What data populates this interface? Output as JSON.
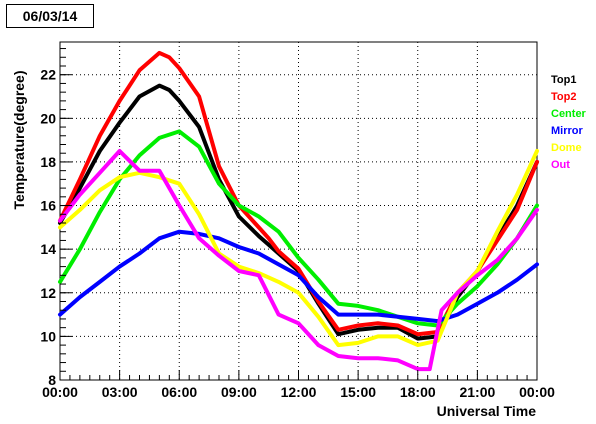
{
  "chart_data": {
    "type": "line",
    "title": "06/03/14",
    "xlabel": "Universal Time",
    "ylabel": "Temperature(degree)",
    "xlim": [
      0,
      24
    ],
    "ylim": [
      8,
      23.5
    ],
    "grid": true,
    "legend_position": "right",
    "x_ticks": [
      {
        "value": 0,
        "label": "00:00"
      },
      {
        "value": 3,
        "label": "03:00"
      },
      {
        "value": 6,
        "label": "06:00"
      },
      {
        "value": 9,
        "label": "09:00"
      },
      {
        "value": 12,
        "label": "12:00"
      },
      {
        "value": 15,
        "label": "15:00"
      },
      {
        "value": 18,
        "label": "18:00"
      },
      {
        "value": 21,
        "label": "21:00"
      },
      {
        "value": 24,
        "label": "00:00"
      }
    ],
    "y_ticks": [
      {
        "value": 8,
        "label": "8"
      },
      {
        "value": 10,
        "label": "10"
      },
      {
        "value": 12,
        "label": "12"
      },
      {
        "value": 14,
        "label": "14"
      },
      {
        "value": 16,
        "label": "16"
      },
      {
        "value": 18,
        "label": "18"
      },
      {
        "value": 20,
        "label": "20"
      },
      {
        "value": 22,
        "label": "22"
      }
    ],
    "series": [
      {
        "name": "Top1",
        "color": "#000000",
        "x": [
          0,
          1,
          2,
          3,
          4,
          5,
          5.5,
          6,
          7,
          8,
          9,
          10,
          10.5,
          11,
          12,
          13,
          14,
          15,
          16,
          17,
          18,
          19,
          20,
          21,
          22,
          23,
          24
        ],
        "y": [
          15.2,
          16.8,
          18.5,
          19.8,
          21.0,
          21.5,
          21.3,
          20.8,
          19.6,
          17.2,
          15.5,
          14.6,
          14.2,
          13.8,
          13.0,
          11.5,
          10.1,
          10.3,
          10.4,
          10.4,
          9.9,
          10.0,
          11.8,
          13.0,
          14.5,
          16.0,
          18.0
        ]
      },
      {
        "name": "Top2",
        "color": "#ff0000",
        "x": [
          0,
          1,
          2,
          3,
          4,
          5,
          5.5,
          6,
          7,
          8,
          9,
          10,
          10.5,
          11,
          12,
          13,
          14,
          15,
          16,
          17,
          18,
          19,
          20,
          21,
          22,
          23,
          24
        ],
        "y": [
          15.3,
          17.2,
          19.2,
          20.8,
          22.2,
          23.0,
          22.8,
          22.3,
          21.0,
          17.8,
          16.0,
          15.0,
          14.5,
          13.9,
          13.1,
          11.6,
          10.3,
          10.5,
          10.6,
          10.5,
          10.1,
          10.2,
          12.0,
          13.0,
          14.4,
          15.8,
          18.0
        ]
      },
      {
        "name": "Center",
        "color": "#00ee00",
        "x": [
          0,
          1,
          2,
          3,
          4,
          5,
          6,
          7,
          8,
          9,
          10,
          11,
          12,
          13,
          14,
          15,
          16,
          17,
          18,
          19,
          20,
          21,
          22,
          23,
          24
        ],
        "y": [
          12.5,
          14.0,
          15.7,
          17.2,
          18.3,
          19.1,
          19.4,
          18.7,
          17.0,
          16.0,
          15.5,
          14.8,
          13.6,
          12.6,
          11.5,
          11.4,
          11.2,
          10.9,
          10.6,
          10.5,
          11.5,
          12.3,
          13.3,
          14.5,
          16.0
        ]
      },
      {
        "name": "Mirror",
        "color": "#0000ff",
        "x": [
          0,
          1,
          2,
          3,
          4,
          5,
          6,
          7,
          8,
          9,
          10,
          11,
          12,
          13,
          14,
          15,
          16,
          17,
          18,
          19,
          20,
          21,
          22,
          23,
          24
        ],
        "y": [
          11.0,
          11.8,
          12.5,
          13.2,
          13.8,
          14.5,
          14.8,
          14.7,
          14.5,
          14.1,
          13.8,
          13.3,
          12.8,
          11.8,
          11.0,
          11.0,
          11.0,
          10.9,
          10.8,
          10.7,
          11.0,
          11.5,
          12.0,
          12.6,
          13.3
        ]
      },
      {
        "name": "Dome",
        "color": "#ffff00",
        "x": [
          0,
          1,
          2,
          3,
          4,
          5,
          6,
          7,
          8,
          9,
          10,
          11,
          12,
          13,
          14,
          15,
          16,
          17,
          18,
          19,
          20,
          21,
          22,
          23,
          24
        ],
        "y": [
          15.0,
          15.8,
          16.7,
          17.3,
          17.5,
          17.3,
          17.0,
          15.6,
          13.8,
          13.2,
          12.9,
          12.5,
          12.0,
          10.9,
          9.6,
          9.7,
          10.0,
          10.0,
          9.6,
          9.8,
          12.0,
          13.0,
          14.8,
          16.5,
          18.5
        ]
      },
      {
        "name": "Out",
        "color": "#ff00ff",
        "x": [
          0,
          1,
          2,
          3,
          4,
          5,
          6,
          7,
          8,
          9,
          10,
          11,
          12,
          13,
          14,
          15,
          16,
          17,
          18,
          18.6,
          19.2,
          20,
          21,
          22,
          23,
          24
        ],
        "y": [
          15.3,
          16.5,
          17.5,
          18.5,
          17.6,
          17.6,
          16.0,
          14.5,
          13.7,
          13.0,
          12.8,
          11.0,
          10.6,
          9.6,
          9.1,
          9.0,
          9.0,
          8.9,
          8.5,
          8.5,
          11.2,
          12.0,
          12.8,
          13.5,
          14.5,
          15.8
        ]
      }
    ]
  }
}
